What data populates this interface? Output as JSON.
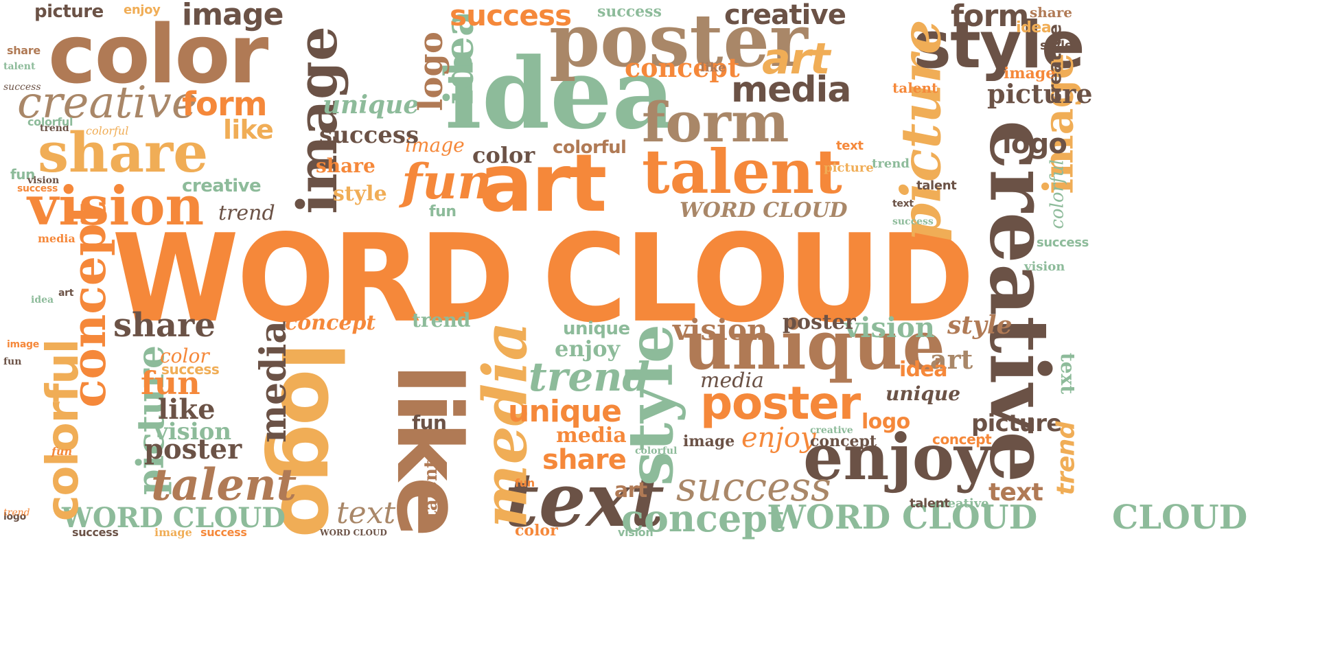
{
  "cloud": {
    "words": {
      "main": "WORD CLOUD",
      "main_word": "WORD",
      "main_cloud": "CLOUD",
      "creative": "creative",
      "color": "color",
      "image": "image",
      "idea": "idea",
      "poster": "poster",
      "style": "style",
      "art": "art",
      "talent": "talent",
      "form": "form",
      "share": "share",
      "vision": "vision",
      "like": "like",
      "logo": "logo",
      "text": "text",
      "media": "media",
      "unique": "unique",
      "enjoy": "enjoy",
      "success": "success",
      "concept": "concept",
      "picture": "picture",
      "colorful": "colorful",
      "trend": "trend",
      "fun": "fun"
    },
    "palette": {
      "orange": "#f5883a",
      "light_orange": "#f0ad56",
      "tan": "#b07a55",
      "dark_brown": "#6b5246",
      "sage_green": "#8dbb9a",
      "taupe": "#a98768",
      "background": "#ffffff"
    }
  }
}
